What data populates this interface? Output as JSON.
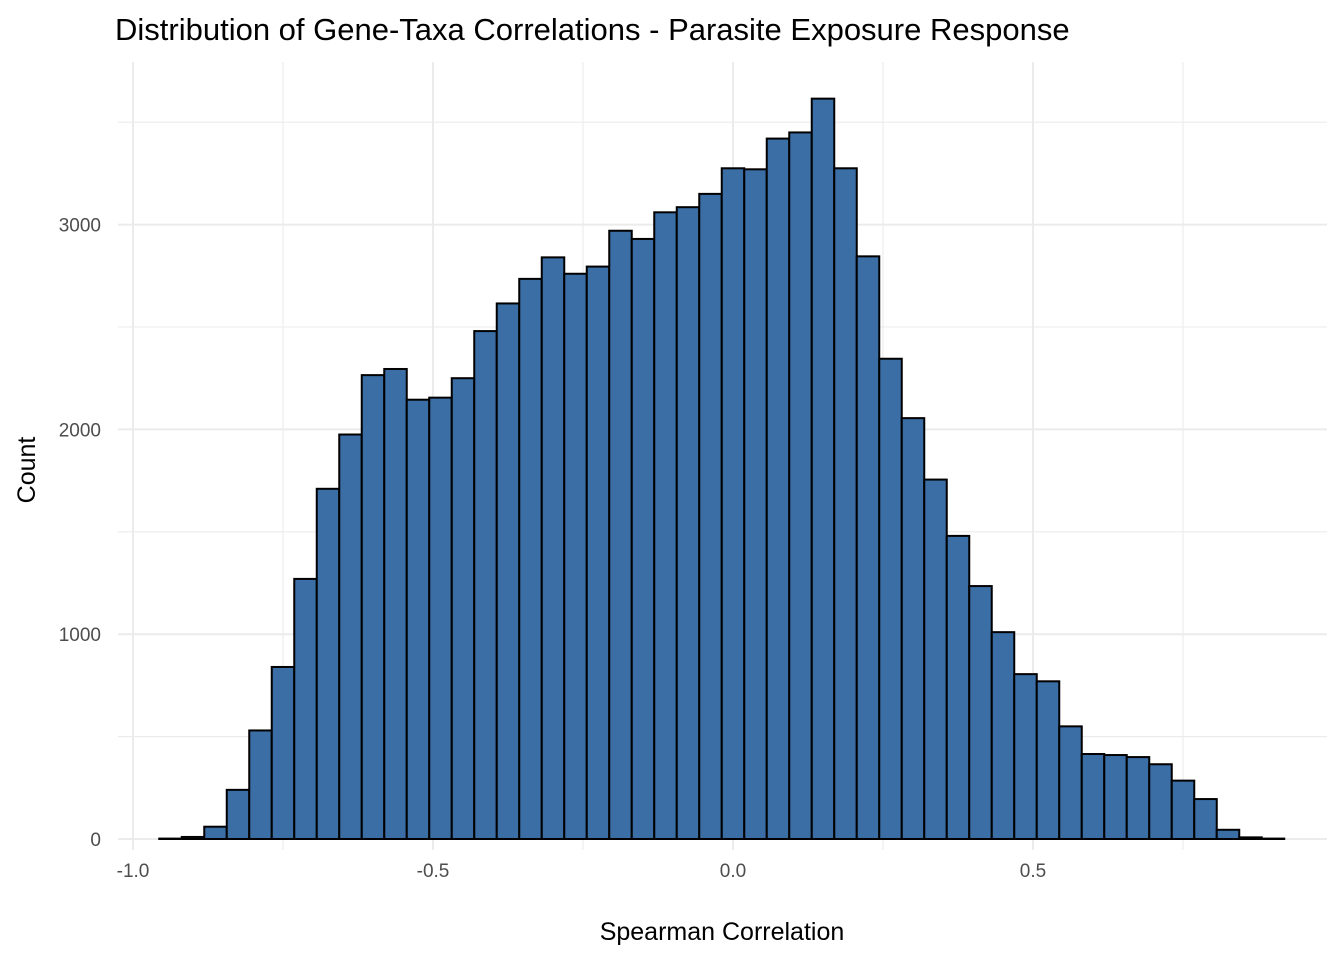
{
  "chart_data": {
    "type": "bar",
    "title": "Distribution of Gene-Taxa Correlations - Parasite Exposure Response",
    "xlabel": "Spearman Correlation",
    "ylabel": "Count",
    "xlim": [
      -1.0,
      0.9
    ],
    "ylim": [
      0,
      3650
    ],
    "x_ticks": [
      -1.0,
      -0.5,
      0.0,
      0.5
    ],
    "x_tick_labels": [
      "-1.0",
      "-0.5",
      "0.0",
      "0.5"
    ],
    "y_ticks": [
      0,
      1000,
      2000,
      3000
    ],
    "y_tick_labels": [
      "0",
      "1000",
      "2000",
      "3000"
    ],
    "grid": true,
    "fill_color": "#3A6EA5",
    "edge_color": "#000000",
    "bin_width": 0.0375,
    "bin_centers": [
      -0.9375,
      -0.9,
      -0.8625,
      -0.825,
      -0.7875,
      -0.75,
      -0.7125,
      -0.675,
      -0.6375,
      -0.6,
      -0.5625,
      -0.525,
      -0.4875,
      -0.45,
      -0.4125,
      -0.375,
      -0.3375,
      -0.3,
      -0.2625,
      -0.225,
      -0.1875,
      -0.15,
      -0.1125,
      -0.075,
      -0.0375,
      0.0,
      0.0375,
      0.075,
      0.1125,
      0.15,
      0.1875,
      0.225,
      0.2625,
      0.3,
      0.3375,
      0.375,
      0.4125,
      0.45,
      0.4875,
      0.525,
      0.5625,
      0.6,
      0.6375,
      0.675,
      0.7125,
      0.75,
      0.7875,
      0.825,
      0.8625,
      0.9
    ],
    "values": [
      2,
      10,
      60,
      240,
      530,
      840,
      1270,
      1710,
      1975,
      2265,
      2295,
      2145,
      2155,
      2250,
      2480,
      2615,
      2735,
      2840,
      2760,
      2795,
      2970,
      2930,
      3060,
      3085,
      3150,
      3275,
      3270,
      3420,
      3450,
      3615,
      3275,
      2845,
      2345,
      2055,
      1755,
      1480,
      1235,
      1010,
      805,
      770,
      550,
      415,
      410,
      400,
      365,
      285,
      195,
      45,
      8,
      2
    ]
  }
}
